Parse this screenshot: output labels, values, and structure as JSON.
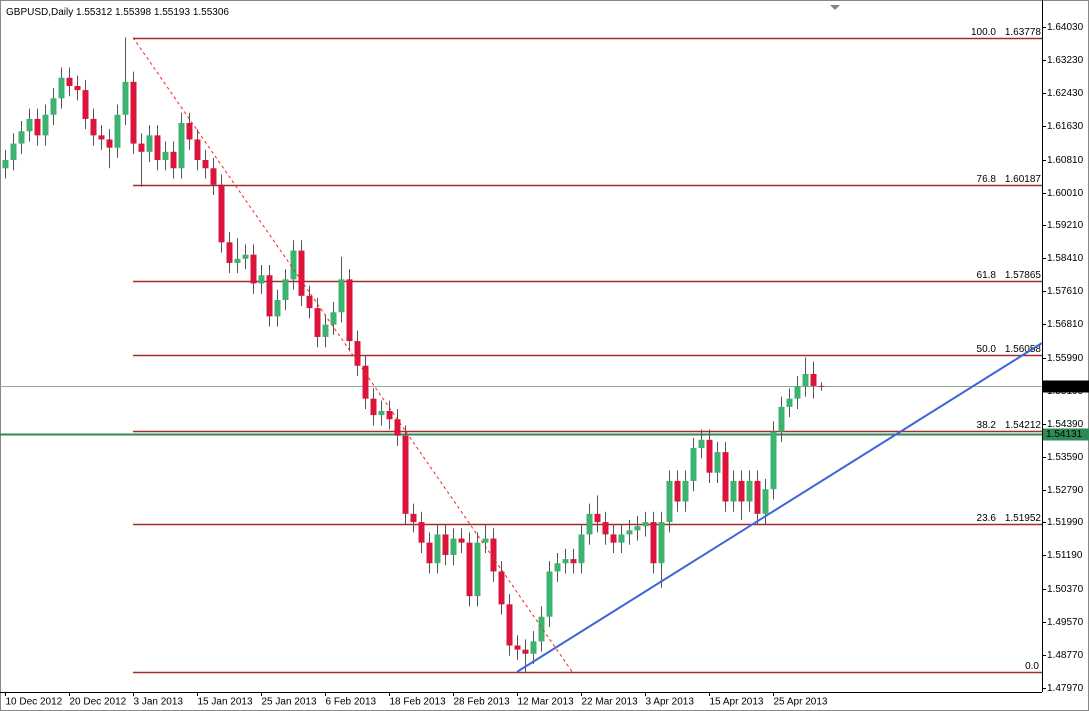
{
  "chart_data": {
    "type": "candlestick",
    "symbol": "GBPUSD,Daily",
    "categories": [
      "10 Dec 2012",
      null,
      null,
      null,
      null,
      null,
      null,
      null,
      "20 Dec 2012",
      null,
      null,
      null,
      null,
      null,
      null,
      null,
      "3 Jan 2013",
      null,
      null,
      null,
      null,
      null,
      null,
      null,
      "15 Jan 2013",
      null,
      null,
      null,
      null,
      null,
      null,
      null,
      "25 Jan 2013",
      null,
      null,
      null,
      null,
      null,
      null,
      null,
      "6 Feb 2013",
      null,
      null,
      null,
      null,
      null,
      null,
      null,
      "18 Feb 2013",
      null,
      null,
      null,
      null,
      null,
      null,
      null,
      "28 Feb 2013",
      null,
      null,
      null,
      null,
      null,
      null,
      null,
      "12 Mar 2013",
      null,
      null,
      null,
      null,
      null,
      null,
      null,
      "22 Mar 2013",
      null,
      null,
      null,
      null,
      null,
      null,
      null,
      "3 Apr 2013",
      null,
      null,
      null,
      null,
      null,
      null,
      null,
      "15 Apr 2013",
      null,
      null,
      null,
      null,
      null,
      null,
      null,
      "25 Apr 2013",
      null,
      null,
      null,
      null,
      null,
      null
    ],
    "open": [
      1.606,
      1.608,
      1.612,
      1.615,
      1.618,
      1.614,
      1.619,
      1.623,
      1.628,
      1.626,
      1.625,
      1.618,
      1.614,
      1.613,
      1.611,
      1.619,
      1.627,
      1.612,
      1.61,
      1.614,
      1.608,
      1.61,
      1.606,
      1.617,
      1.613,
      1.608,
      1.606,
      1.602,
      1.588,
      1.583,
      1.584,
      1.585,
      1.578,
      1.58,
      1.57,
      1.574,
      1.579,
      1.586,
      1.575,
      1.572,
      1.565,
      1.568,
      1.571,
      1.579,
      1.564,
      1.558,
      1.55,
      1.546,
      1.547,
      1.545,
      1.541,
      1.522,
      1.52,
      1.515,
      1.51,
      1.517,
      1.512,
      1.516,
      1.515,
      1.502,
      1.515,
      1.516,
      1.508,
      1.5,
      1.49,
      1.489,
      1.488,
      1.491,
      1.497,
      1.508,
      1.51,
      1.511,
      1.51,
      1.517,
      1.522,
      1.52,
      1.517,
      1.515,
      1.517,
      1.518,
      1.519,
      1.52,
      1.51,
      1.52,
      1.53,
      1.525,
      1.53,
      1.538,
      1.54,
      1.532,
      1.537,
      1.525,
      1.53,
      1.525,
      1.53,
      1.522,
      1.528,
      1.542,
      1.548,
      1.55,
      1.553,
      1.556,
      1.55312
    ],
    "high": [
      1.6105,
      1.6145,
      1.6175,
      1.6205,
      1.6205,
      1.6215,
      1.6255,
      1.6305,
      1.6305,
      1.6285,
      1.6275,
      1.6205,
      1.6165,
      1.6155,
      1.6215,
      1.6378,
      1.6295,
      1.6145,
      1.6165,
      1.6165,
      1.6125,
      1.6125,
      1.6195,
      1.6195,
      1.6155,
      1.6105,
      1.6085,
      1.6045,
      1.5905,
      1.589,
      1.5875,
      1.5875,
      1.5825,
      1.5825,
      1.5765,
      1.5815,
      1.5885,
      1.5885,
      1.5775,
      1.5745,
      1.5705,
      1.5735,
      1.5845,
      1.5815,
      1.5665,
      1.5605,
      1.5525,
      1.5495,
      1.5495,
      1.5475,
      1.5435,
      1.5245,
      1.5225,
      1.5175,
      1.5195,
      1.5195,
      1.5185,
      1.5185,
      1.5175,
      1.5175,
      1.5195,
      1.5185,
      1.5105,
      1.5025,
      1.4925,
      1.4915,
      1.4935,
      1.4995,
      1.5105,
      1.5125,
      1.5135,
      1.5135,
      1.5195,
      1.5245,
      1.5265,
      1.5225,
      1.5195,
      1.5195,
      1.5205,
      1.5215,
      1.5225,
      1.5225,
      1.5225,
      1.5325,
      1.5325,
      1.5325,
      1.5405,
      1.5425,
      1.5425,
      1.5395,
      1.5395,
      1.5325,
      1.5325,
      1.5325,
      1.5325,
      1.5305,
      1.5445,
      1.5505,
      1.5525,
      1.5555,
      1.56,
      1.559,
      1.55398
    ],
    "low": [
      1.6035,
      1.6055,
      1.6095,
      1.6125,
      1.6115,
      1.6115,
      1.6165,
      1.6205,
      1.6235,
      1.6225,
      1.6155,
      1.6115,
      1.6105,
      1.606,
      1.6085,
      1.6165,
      1.6095,
      1.6015,
      1.6075,
      1.6055,
      1.6055,
      1.6035,
      1.6035,
      1.6105,
      1.6055,
      1.6035,
      1.5995,
      1.5855,
      1.5805,
      1.5805,
      1.5815,
      1.5755,
      1.5755,
      1.5675,
      1.5675,
      1.5715,
      1.5765,
      1.5725,
      1.5695,
      1.5625,
      1.5625,
      1.5655,
      1.5685,
      1.5615,
      1.5555,
      1.5475,
      1.5435,
      1.5435,
      1.5425,
      1.5385,
      1.5195,
      1.5175,
      1.5125,
      1.5075,
      1.5075,
      1.5095,
      1.5095,
      1.5125,
      1.4995,
      1.4995,
      1.5125,
      1.5055,
      1.4975,
      1.4875,
      1.4865,
      1.4835,
      1.4855,
      1.4885,
      1.4945,
      1.5055,
      1.5075,
      1.5075,
      1.5075,
      1.5145,
      1.5175,
      1.5145,
      1.5125,
      1.5125,
      1.5145,
      1.5155,
      1.5165,
      1.5075,
      1.504,
      1.5175,
      1.5225,
      1.5225,
      1.5275,
      1.5355,
      1.5295,
      1.5295,
      1.5225,
      1.5225,
      1.5205,
      1.5225,
      1.5195,
      1.5195,
      1.5255,
      1.5395,
      1.5455,
      1.5475,
      1.5505,
      1.55,
      1.55193
    ],
    "close": [
      1.608,
      1.612,
      1.615,
      1.618,
      1.614,
      1.619,
      1.623,
      1.628,
      1.626,
      1.625,
      1.618,
      1.614,
      1.613,
      1.611,
      1.619,
      1.627,
      1.612,
      1.61,
      1.614,
      1.608,
      1.61,
      1.606,
      1.617,
      1.613,
      1.608,
      1.606,
      1.602,
      1.588,
      1.583,
      1.584,
      1.585,
      1.578,
      1.58,
      1.57,
      1.574,
      1.579,
      1.586,
      1.575,
      1.572,
      1.565,
      1.568,
      1.571,
      1.579,
      1.564,
      1.558,
      1.55,
      1.546,
      1.547,
      1.545,
      1.541,
      1.522,
      1.52,
      1.515,
      1.51,
      1.517,
      1.512,
      1.516,
      1.515,
      1.502,
      1.515,
      1.516,
      1.508,
      1.5,
      1.49,
      1.489,
      1.488,
      1.491,
      1.497,
      1.508,
      1.51,
      1.511,
      1.51,
      1.517,
      1.522,
      1.52,
      1.517,
      1.515,
      1.517,
      1.518,
      1.519,
      1.52,
      1.51,
      1.52,
      1.53,
      1.525,
      1.53,
      1.538,
      1.54,
      1.532,
      1.537,
      1.525,
      1.53,
      1.525,
      1.53,
      1.522,
      1.528,
      1.542,
      1.548,
      1.55,
      1.553,
      1.556,
      1.5531,
      1.55306
    ],
    "up_color": "#3cb371",
    "down_color": "#dc143c",
    "ylim": [
      1.4787,
      1.6469
    ],
    "yticks": [
      {
        "value": 1.6403,
        "label": "1.64030"
      },
      {
        "value": 1.6323,
        "label": "1.63230"
      },
      {
        "value": 1.6243,
        "label": "1.62430"
      },
      {
        "value": 1.6163,
        "label": "1.61630"
      },
      {
        "value": 1.6081,
        "label": "1.60810"
      },
      {
        "value": 1.6001,
        "label": "1.60010"
      },
      {
        "value": 1.5921,
        "label": "1.59210"
      },
      {
        "value": 1.5841,
        "label": "1.58410"
      },
      {
        "value": 1.5761,
        "label": "1.57610"
      },
      {
        "value": 1.5681,
        "label": "1.56810"
      },
      {
        "value": 1.5599,
        "label": "1.55990"
      },
      {
        "value": 1.5519,
        "label": "1.55190"
      },
      {
        "value": 1.5439,
        "label": "1.54390"
      },
      {
        "value": 1.5359,
        "label": "1.53590"
      },
      {
        "value": 1.5279,
        "label": "1.52790"
      },
      {
        "value": 1.5199,
        "label": "1.51990"
      },
      {
        "value": 1.5119,
        "label": "1.51190"
      },
      {
        "value": 1.5037,
        "label": "1.50370"
      },
      {
        "value": 1.4957,
        "label": "1.49570"
      },
      {
        "value": 1.4877,
        "label": "1.48770"
      },
      {
        "value": 1.4797,
        "label": "1.47970"
      }
    ],
    "fib_color": "#a52a2a",
    "fib_levels": [
      {
        "level": "100.0",
        "price": 1.63778
      },
      {
        "level": "76.8",
        "price": 1.60187
      },
      {
        "level": "61.8",
        "price": 1.57865
      },
      {
        "level": "50.0",
        "price": 1.56058
      },
      {
        "level": "38.2",
        "price": 1.54212
      },
      {
        "level": "23.6",
        "price": 1.51952
      },
      {
        "level": "0.0",
        "price": 1.4836,
        "show_price": false
      }
    ],
    "trendlines": [
      {
        "style": "dashed",
        "color": "#ff2020",
        "x": [
          16,
          70.9
        ],
        "y": [
          1.63778,
          1.4836
        ]
      },
      {
        "style": "solid",
        "color": "#3a66d6",
        "x": [
          64,
          129.6
        ],
        "y": [
          1.4836,
          1.5635
        ]
      }
    ],
    "levels": [
      {
        "price": 1.54131,
        "color": "#2e8b57"
      }
    ]
  }
}
